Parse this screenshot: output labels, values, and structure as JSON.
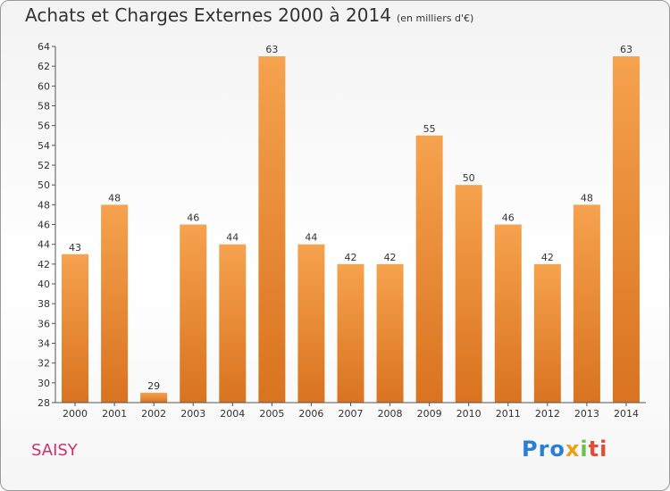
{
  "header": {
    "title": "Achats et Charges Externes 2000 à 2014",
    "subtitle": "(en milliers d'€)"
  },
  "footer": {
    "commune": "SAISY",
    "logo": [
      "Pro",
      "x",
      "i",
      "ti"
    ]
  },
  "colors": {
    "bar_top": "#f6a24e",
    "bar_bottom": "#d9731f",
    "axis": "#555555",
    "grid": "#d8d8d8",
    "commune": "#d0306a"
  },
  "chart_data": {
    "type": "bar",
    "title": "Achats et Charges Externes 2000 à 2014",
    "subtitle": "(en milliers d'€)",
    "xlabel": "",
    "ylabel": "",
    "categories": [
      "2000",
      "2001",
      "2002",
      "2003",
      "2004",
      "2005",
      "2006",
      "2007",
      "2008",
      "2009",
      "2010",
      "2011",
      "2012",
      "2013",
      "2014"
    ],
    "values": [
      43,
      48,
      29,
      46,
      44,
      63,
      44,
      42,
      42,
      55,
      50,
      46,
      42,
      48,
      63
    ],
    "ylim": [
      28,
      64
    ],
    "yticks": [
      28,
      30,
      32,
      34,
      36,
      38,
      40,
      42,
      44,
      46,
      48,
      50,
      52,
      54,
      56,
      58,
      60,
      62,
      64
    ],
    "grid": false,
    "legend": "none"
  }
}
